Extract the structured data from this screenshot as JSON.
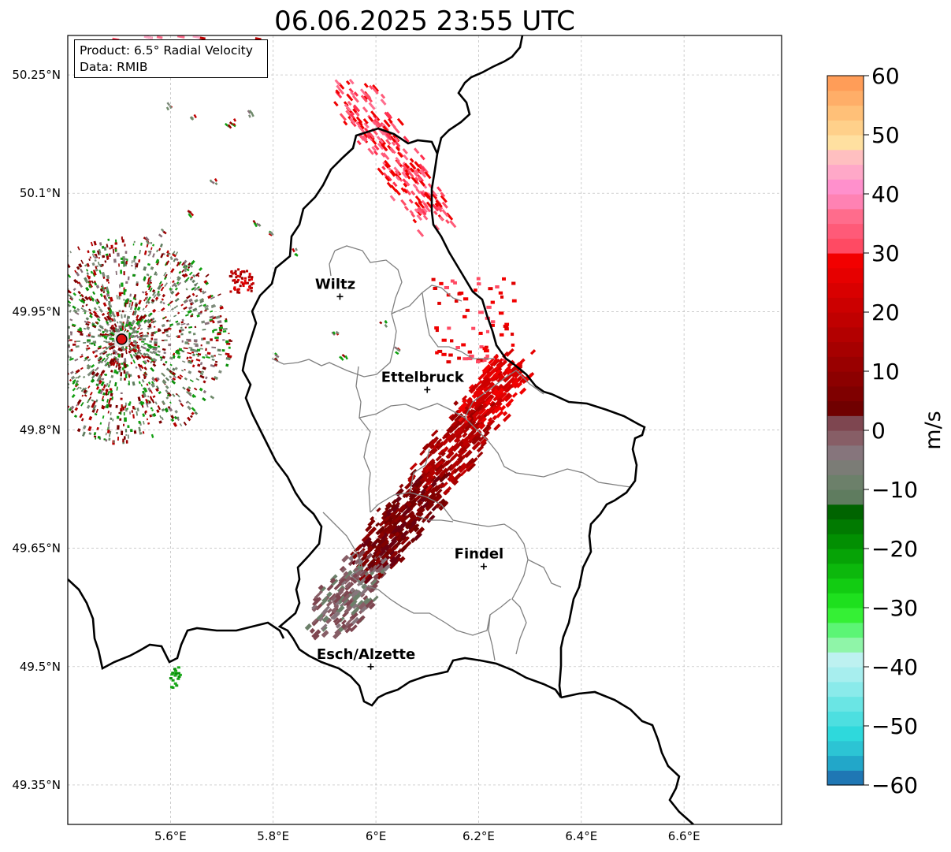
{
  "title": "06.06.2025 23:55 UTC",
  "info": {
    "product": "Product: 6.5° Radial Velocity",
    "data": "Data: RMIB"
  },
  "axes": {
    "x_ticks": [
      "5.6°E",
      "5.8°E",
      "6°E",
      "6.2°E",
      "6.4°E",
      "6.6°E"
    ],
    "y_ticks": [
      "50.25°N",
      "50.1°N",
      "49.95°N",
      "49.8°N",
      "49.65°N",
      "49.5°N",
      "49.35°N"
    ],
    "x_range": [
      5.4,
      6.79
    ],
    "y_range": [
      49.3,
      50.3
    ],
    "grid": true,
    "grid_style": "dashed-gray"
  },
  "cities": [
    {
      "name": "Wiltz",
      "lon": 5.93,
      "lat": 49.969
    },
    {
      "name": "Ettelbruck",
      "lon": 6.1,
      "lat": 49.851
    },
    {
      "name": "Findel",
      "lon": 6.21,
      "lat": 49.627
    },
    {
      "name": "Esch/Alzette",
      "lon": 5.99,
      "lat": 49.5
    }
  ],
  "radar_site": {
    "lon": 5.505,
    "lat": 49.915,
    "color": "#dd1111"
  },
  "colorbar": {
    "label": "m/s",
    "ticks": [
      "60",
      "50",
      "40",
      "30",
      "20",
      "10",
      "0",
      "−10",
      "−20",
      "−30",
      "−40",
      "−50",
      "−60"
    ],
    "min": -60,
    "max": 60,
    "colors": [
      "#1f77b4",
      "#22a7c9",
      "#2cc4d4",
      "#2ed9dc",
      "#4ddfe0",
      "#6ae5e4",
      "#8aeaea",
      "#a7eeee",
      "#bdf1f0",
      "#8ff5a8",
      "#5cf575",
      "#35f035",
      "#1ee01e",
      "#12cc12",
      "#0cb80c",
      "#06a306",
      "#028f02",
      "#017a01",
      "#006400",
      "#5f7c5f",
      "#6c806a",
      "#7b7c76",
      "#86757c",
      "#875e66",
      "#7e4650",
      "#700000",
      "#7f0000",
      "#8c0000",
      "#990000",
      "#a60000",
      "#b30000",
      "#c00000",
      "#cc0000",
      "#d90000",
      "#e60000",
      "#f20000",
      "#ff4a63",
      "#ff5a78",
      "#ff6c8c",
      "#ff82b3",
      "#ff90cc",
      "#ffa8c8",
      "#ffbfc0",
      "#ffe0a0",
      "#ffd08a",
      "#ffc078",
      "#ffae68",
      "#ff9d58"
    ]
  }
}
